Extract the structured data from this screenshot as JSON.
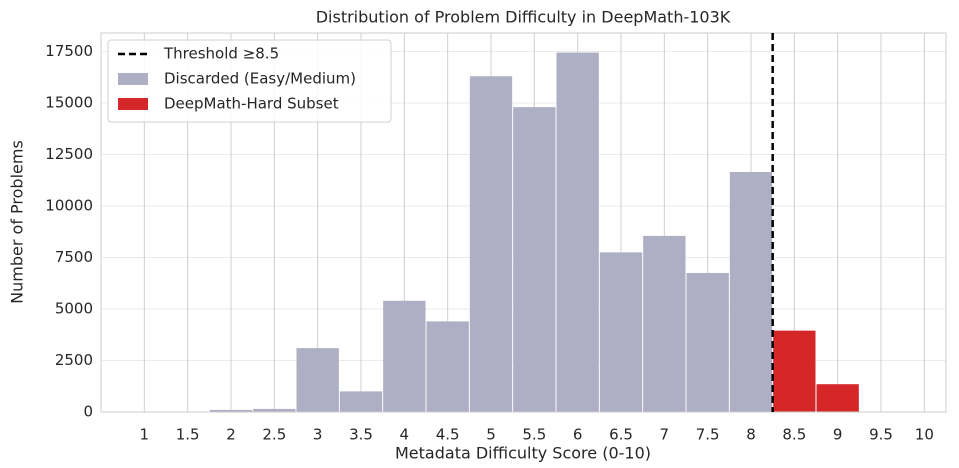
{
  "chart_data": {
    "type": "histogram",
    "title": "Distribution of Problem Difficulty in DeepMath-103K",
    "x_label": "Metadata Difficulty Score (0-10)",
    "y_label": "Number of Problems",
    "bins": [
      0.75,
      1.25,
      1.75,
      2.25,
      2.75,
      3.25,
      3.75,
      4.25,
      4.75,
      5.25,
      5.75,
      6.25,
      6.75,
      7.25,
      7.75,
      8.25,
      8.75,
      9.25,
      9.75,
      10.25
    ],
    "series": [
      {
        "name": "Discarded (Easy/Medium)",
        "color": "#aeaec4",
        "values": [
          10,
          20,
          100,
          150,
          3100,
          1000,
          5400,
          4400,
          16300,
          14800,
          17450,
          7750,
          8550,
          6750,
          11650,
          null,
          null,
          null,
          null
        ]
      },
      {
        "name": "DeepMath-Hard Subset",
        "color": "#d62728",
        "values": [
          null,
          null,
          null,
          null,
          null,
          null,
          null,
          null,
          null,
          null,
          null,
          null,
          null,
          null,
          null,
          3950,
          1350,
          20,
          10
        ]
      }
    ],
    "threshold": {
      "name": "Threshold ≥8.5",
      "x": 8.25,
      "color": "#000000"
    },
    "xlim": [
      0.5,
      10.25
    ],
    "xticks": [
      1,
      1.5,
      2,
      2.5,
      3,
      3.5,
      4,
      4.5,
      5,
      5.5,
      6,
      6.5,
      7,
      7.5,
      8,
      8.5,
      9,
      9.5,
      10
    ],
    "ylim": [
      0,
      18400
    ],
    "yticks": [
      0,
      2500,
      5000,
      7500,
      10000,
      12500,
      15000,
      17500
    ],
    "grid": true,
    "legend": "upper left"
  }
}
